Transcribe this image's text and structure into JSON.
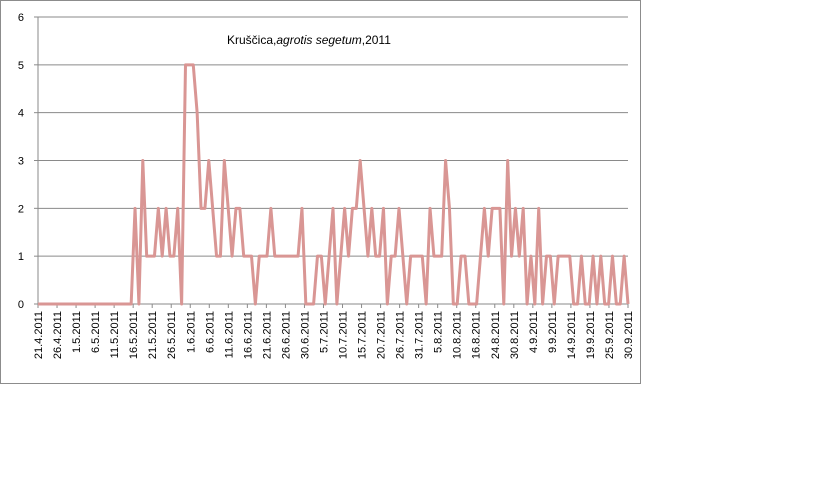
{
  "chart_data": {
    "type": "line",
    "title_plain_1": "Kruščica,",
    "title_italic": "agrotis segetum",
    "title_plain_2": ",2011",
    "ylim": [
      0,
      6
    ],
    "yticks": [
      "0",
      "1",
      "2",
      "3",
      "4",
      "5",
      "6"
    ],
    "grid": true,
    "legend": "none",
    "line_color": "#d99694",
    "xtick_labels": [
      "21.4.2011",
      "26.4.2011",
      "1.5.2011",
      "6.5.2011",
      "11.5.2011",
      "16.5.2011",
      "21.5.2011",
      "26.5.2011",
      "1.6.2011",
      "6.6.2011",
      "11.6.2011",
      "16.6.2011",
      "21.6.2011",
      "26.6.2011",
      "30.6.2011",
      "5.7.2011",
      "10.7.2011",
      "15.7.2011",
      "20.7.2011",
      "26.7.2011",
      "31.7.2011",
      "5.8.2011",
      "10.8.2011",
      "16.8.2011",
      "24.8.2011",
      "30.8.2011",
      "4.9.2011",
      "9.9.2011",
      "14.9.2011",
      "19.9.2011",
      "25.9.2011",
      "30.9.2011"
    ],
    "values": [
      0,
      0,
      0,
      0,
      0,
      0,
      0,
      0,
      0,
      0,
      0,
      0,
      0,
      0,
      0,
      0,
      0,
      0,
      0,
      0,
      0,
      0,
      0,
      0,
      0,
      2,
      0,
      3,
      1,
      1,
      1,
      2,
      1,
      2,
      1,
      1,
      2,
      0,
      5,
      5,
      5,
      4,
      2,
      2,
      3,
      2,
      1,
      1,
      3,
      2,
      1,
      2,
      2,
      1,
      1,
      1,
      0,
      1,
      1,
      1,
      2,
      1,
      1,
      1,
      1,
      1,
      1,
      1,
      2,
      0,
      0,
      0,
      1,
      1,
      0,
      1,
      2,
      0,
      1,
      2,
      1,
      2,
      2,
      3,
      2,
      1,
      2,
      1,
      1,
      2,
      0,
      1,
      1,
      2,
      1,
      0,
      1,
      1,
      1,
      1,
      0,
      2,
      1,
      1,
      1,
      3,
      2,
      0,
      0,
      1,
      1,
      0,
      0,
      0,
      1,
      2,
      1,
      2,
      2,
      2,
      0,
      3,
      1,
      2,
      1,
      2,
      0,
      1,
      0,
      2,
      0,
      1,
      1,
      0,
      1,
      1,
      1,
      1,
      0,
      0,
      1,
      0,
      0,
      1,
      0,
      1,
      0,
      0,
      1,
      0,
      0,
      1,
      0
    ]
  }
}
